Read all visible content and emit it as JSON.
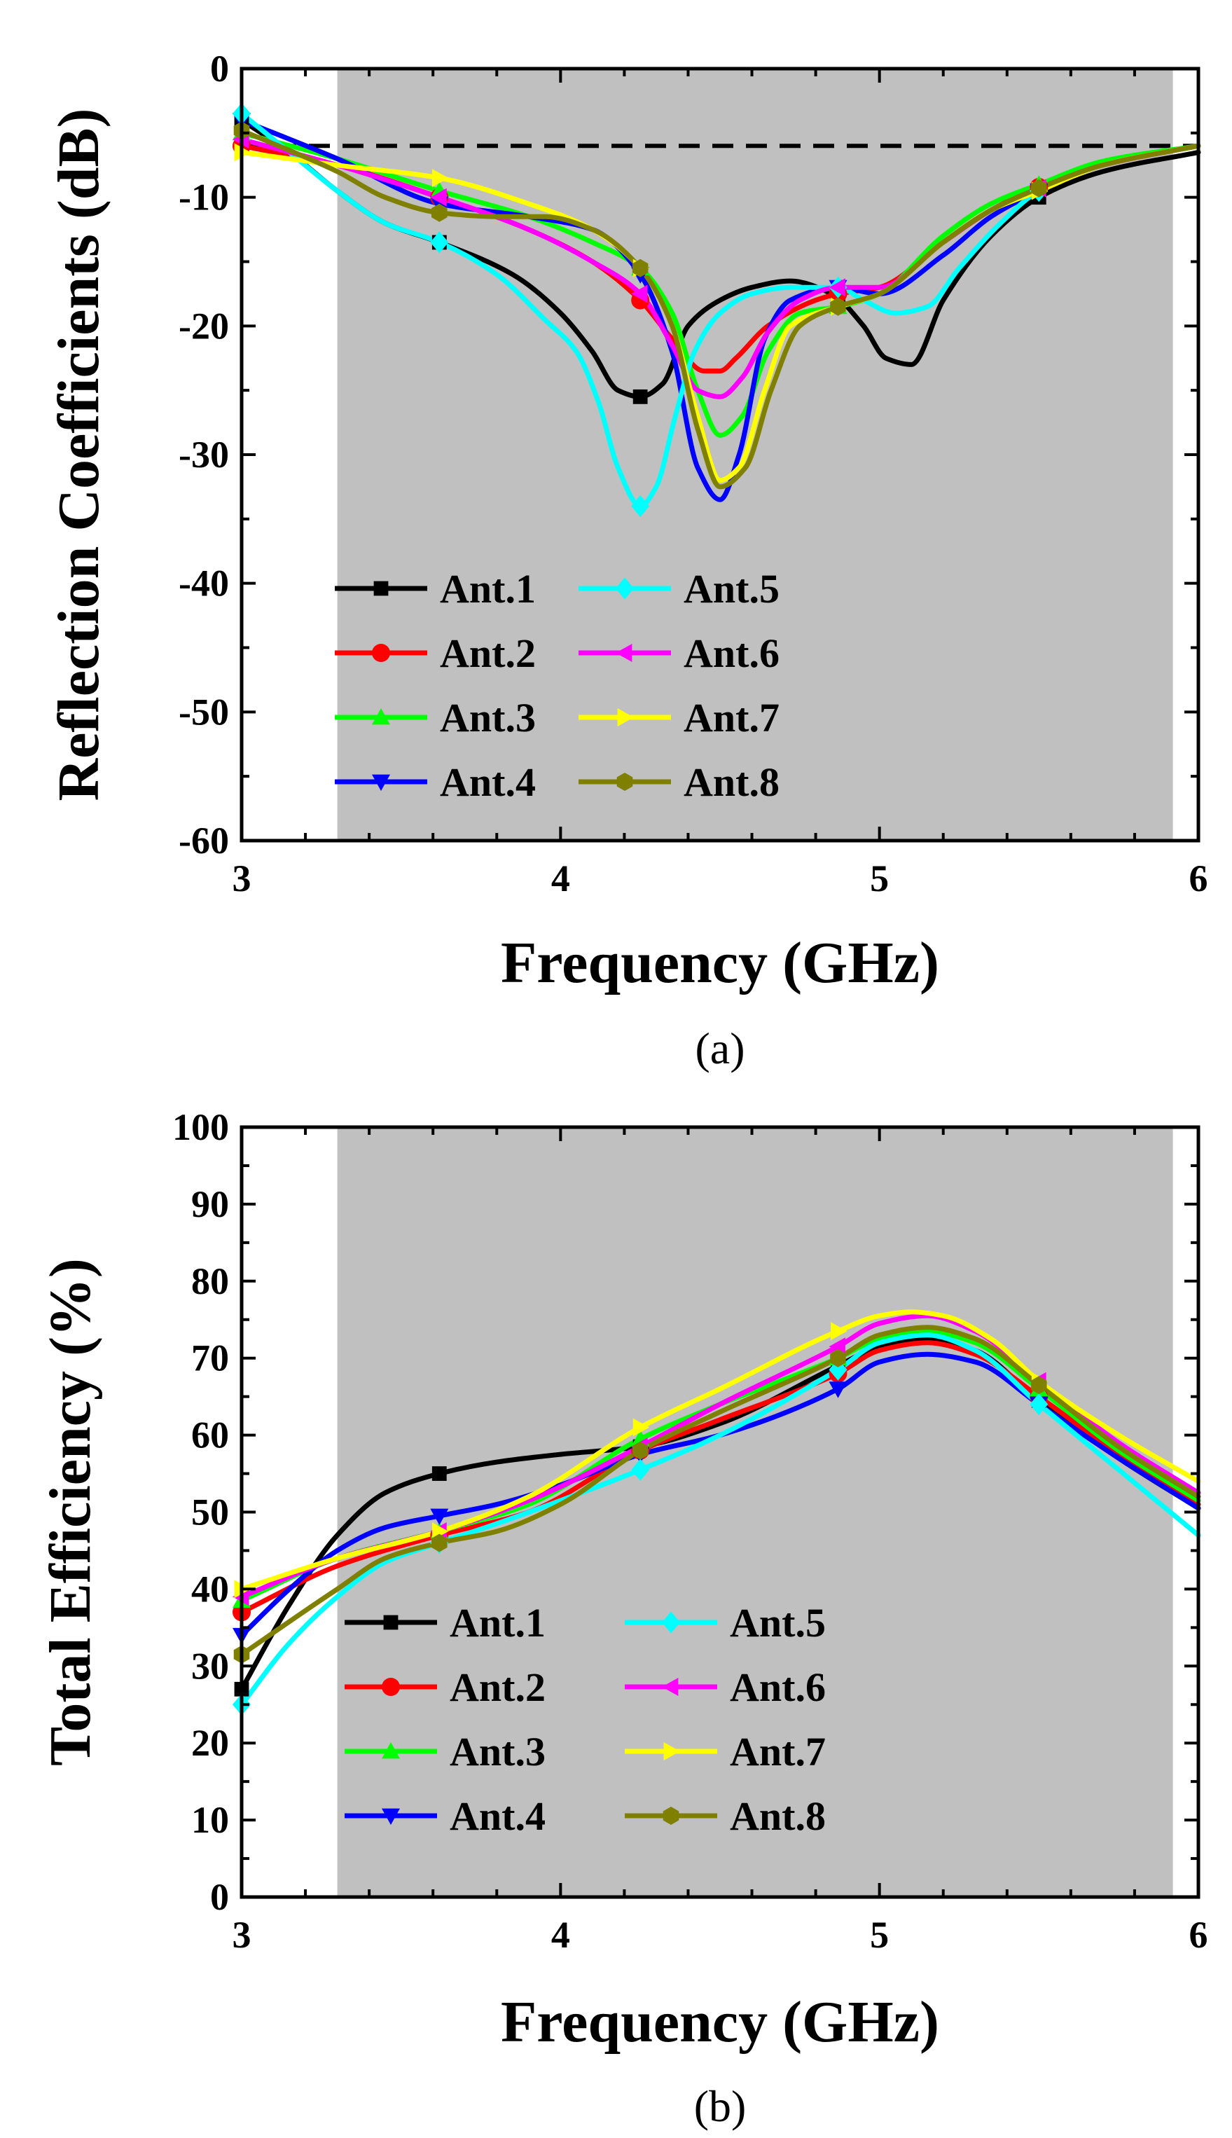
{
  "chart_data": [
    {
      "type": "line",
      "caption": "(a)",
      "xlabel": "Frequency (GHz)",
      "ylabel": "Reflection Coefficients (dB)",
      "xlim": [
        3,
        6
      ],
      "ylim": [
        -60,
        0
      ],
      "xticks": [
        "3",
        "4",
        "5",
        "6"
      ],
      "yticks": [
        "0",
        "-10",
        "-20",
        "-30",
        "-40",
        "-50",
        "-60"
      ],
      "shaded_band": [
        3.3,
        5.92
      ],
      "reference_line": -6,
      "series": [
        {
          "name": "Ant.1",
          "color": "#000000",
          "marker": "square",
          "x": [
            3.0,
            3.15,
            3.3,
            3.45,
            3.62,
            3.85,
            4.0,
            4.1,
            4.18,
            4.25,
            4.32,
            4.4,
            4.5,
            4.6,
            4.72,
            4.85,
            4.95,
            5.02,
            5.1,
            5.2,
            5.35,
            5.5,
            5.7,
            6.0
          ],
          "y": [
            -4.0,
            -6.5,
            -9.5,
            -12.0,
            -13.5,
            -16.0,
            -19.0,
            -22.0,
            -25.0,
            -25.5,
            -24.5,
            -20.0,
            -18.0,
            -17.0,
            -16.5,
            -17.5,
            -20.0,
            -22.5,
            -23.0,
            -18.0,
            -13.0,
            -10.0,
            -8.0,
            -6.5
          ]
        },
        {
          "name": "Ant.2",
          "color": "#ff0000",
          "marker": "circle",
          "x": [
            3.0,
            3.3,
            3.62,
            3.9,
            4.1,
            4.25,
            4.35,
            4.45,
            4.5,
            4.55,
            4.65,
            4.8,
            4.87,
            5.0,
            5.2,
            5.35,
            5.5,
            5.7,
            6.0
          ],
          "y": [
            -6.0,
            -7.5,
            -10.0,
            -12.5,
            -15.0,
            -18.0,
            -21.0,
            -23.5,
            -23.5,
            -22.5,
            -20.0,
            -18.0,
            -17.5,
            -17.0,
            -13.5,
            -11.0,
            -9.2,
            -7.5,
            -6.0
          ]
        },
        {
          "name": "Ant.3",
          "color": "#00ff00",
          "marker": "triangle-up",
          "x": [
            3.0,
            3.3,
            3.62,
            3.9,
            4.1,
            4.25,
            4.35,
            4.43,
            4.5,
            4.57,
            4.65,
            4.75,
            4.87,
            5.0,
            5.2,
            5.35,
            5.5,
            5.7,
            6.0
          ],
          "y": [
            -5.0,
            -7.0,
            -9.5,
            -11.5,
            -13.5,
            -15.5,
            -19.0,
            -25.0,
            -28.5,
            -27.0,
            -22.0,
            -19.0,
            -18.5,
            -17.5,
            -13.0,
            -10.5,
            -9.0,
            -7.2,
            -6.0
          ]
        },
        {
          "name": "Ant.4",
          "color": "#0000ff",
          "marker": "triangle-down",
          "x": [
            3.0,
            3.3,
            3.62,
            3.9,
            4.1,
            4.25,
            4.35,
            4.43,
            4.5,
            4.56,
            4.64,
            4.72,
            4.87,
            5.0,
            5.2,
            5.35,
            5.5,
            5.7,
            6.0
          ],
          "y": [
            -4.0,
            -7.0,
            -10.5,
            -11.5,
            -12.5,
            -16.0,
            -22.0,
            -31.0,
            -33.5,
            -30.0,
            -21.0,
            -18.0,
            -17.0,
            -17.5,
            -14.5,
            -11.5,
            -9.5,
            -7.5,
            -6.0
          ]
        },
        {
          "name": "Ant.5",
          "color": "#00ffff",
          "marker": "diamond",
          "x": [
            3.0,
            3.15,
            3.3,
            3.45,
            3.62,
            3.8,
            3.95,
            4.05,
            4.12,
            4.18,
            4.25,
            4.3,
            4.36,
            4.42,
            4.5,
            4.6,
            4.72,
            4.87,
            4.95,
            5.05,
            5.15,
            5.25,
            5.38,
            5.5,
            5.7,
            6.0
          ],
          "y": [
            -3.5,
            -6.5,
            -9.5,
            -12.0,
            -13.5,
            -16.0,
            -19.5,
            -22.0,
            -26.0,
            -31.0,
            -34.0,
            -32.5,
            -27.0,
            -22.0,
            -19.0,
            -17.5,
            -17.0,
            -17.0,
            -18.0,
            -19.0,
            -18.5,
            -15.5,
            -12.0,
            -9.5,
            -7.5,
            -6.0
          ]
        },
        {
          "name": "Ant.6",
          "color": "#ff00ff",
          "marker": "triangle-left",
          "x": [
            3.0,
            3.3,
            3.62,
            3.9,
            4.1,
            4.25,
            4.35,
            4.43,
            4.5,
            4.57,
            4.65,
            4.75,
            4.87,
            5.0,
            5.2,
            5.35,
            5.5,
            5.7,
            6.0
          ],
          "y": [
            -5.5,
            -7.5,
            -10.0,
            -12.5,
            -15.0,
            -17.5,
            -21.5,
            -25.0,
            -25.5,
            -24.0,
            -20.5,
            -18.0,
            -17.0,
            -17.0,
            -13.5,
            -11.0,
            -9.3,
            -7.5,
            -6.0
          ]
        },
        {
          "name": "Ant.7",
          "color": "#ffff00",
          "marker": "triangle-right",
          "x": [
            3.0,
            3.3,
            3.62,
            3.9,
            4.1,
            4.25,
            4.35,
            4.43,
            4.5,
            4.56,
            4.64,
            4.72,
            4.87,
            5.0,
            5.2,
            5.35,
            5.5,
            5.7,
            6.0
          ],
          "y": [
            -6.5,
            -7.5,
            -8.5,
            -10.5,
            -12.5,
            -15.5,
            -20.0,
            -27.0,
            -32.0,
            -31.0,
            -25.0,
            -20.0,
            -18.5,
            -17.5,
            -13.5,
            -11.0,
            -9.5,
            -7.5,
            -6.0
          ]
        },
        {
          "name": "Ant.8",
          "color": "#808000",
          "marker": "hexagon",
          "x": [
            3.0,
            3.3,
            3.45,
            3.62,
            3.8,
            3.95,
            4.1,
            4.25,
            4.35,
            4.43,
            4.5,
            4.58,
            4.66,
            4.75,
            4.87,
            5.0,
            5.2,
            5.35,
            5.5,
            5.7,
            6.0
          ],
          "y": [
            -4.8,
            -8.0,
            -10.0,
            -11.2,
            -11.5,
            -11.5,
            -12.5,
            -15.5,
            -20.0,
            -28.0,
            -32.5,
            -31.0,
            -25.0,
            -20.0,
            -18.5,
            -17.5,
            -13.5,
            -11.0,
            -9.3,
            -7.5,
            -6.0
          ]
        }
      ]
    },
    {
      "type": "line",
      "caption": "(b)",
      "xlabel": "Frequency (GHz)",
      "ylabel": "Total Efficiency (%)",
      "xlim": [
        3,
        6
      ],
      "ylim": [
        0,
        100
      ],
      "xticks": [
        "3",
        "4",
        "5",
        "6"
      ],
      "yticks": [
        "0",
        "10",
        "20",
        "30",
        "40",
        "50",
        "60",
        "70",
        "80",
        "90",
        "100"
      ],
      "shaded_band": [
        3.3,
        5.92
      ],
      "series": [
        {
          "name": "Ant.1",
          "color": "#000000",
          "marker": "square",
          "x": [
            3.0,
            3.15,
            3.3,
            3.45,
            3.62,
            3.8,
            4.0,
            4.25,
            4.5,
            4.87,
            5.0,
            5.15,
            5.3,
            5.5,
            5.75,
            6.0
          ],
          "y": [
            27.0,
            38.0,
            47.0,
            52.5,
            55.0,
            56.5,
            57.5,
            58.5,
            61.5,
            69.0,
            71.5,
            72.5,
            71.0,
            64.5,
            57.0,
            50.5
          ]
        },
        {
          "name": "Ant.2",
          "color": "#ff0000",
          "marker": "circle",
          "x": [
            3.0,
            3.3,
            3.62,
            3.9,
            4.25,
            4.5,
            4.87,
            5.0,
            5.15,
            5.3,
            5.5,
            5.75,
            6.0
          ],
          "y": [
            37.0,
            43.0,
            47.0,
            50.0,
            58.0,
            62.0,
            68.0,
            71.0,
            72.0,
            70.5,
            65.0,
            57.5,
            51.0
          ]
        },
        {
          "name": "Ant.3",
          "color": "#00ff00",
          "marker": "triangle-up",
          "x": [
            3.0,
            3.3,
            3.62,
            3.9,
            4.25,
            4.5,
            4.87,
            5.0,
            5.15,
            5.3,
            5.5,
            5.75,
            6.0
          ],
          "y": [
            38.5,
            44.0,
            47.5,
            51.0,
            59.5,
            64.0,
            70.0,
            72.5,
            73.5,
            72.0,
            66.0,
            58.0,
            51.5
          ]
        },
        {
          "name": "Ant.4",
          "color": "#0000ff",
          "marker": "triangle-down",
          "x": [
            3.0,
            3.15,
            3.3,
            3.45,
            3.62,
            3.8,
            4.0,
            4.25,
            4.5,
            4.87,
            5.0,
            5.15,
            5.3,
            5.5,
            5.75,
            6.0
          ],
          "y": [
            34.0,
            40.0,
            45.0,
            48.0,
            49.5,
            51.0,
            53.5,
            57.5,
            60.0,
            66.0,
            69.5,
            70.5,
            69.5,
            64.0,
            57.0,
            50.5
          ]
        },
        {
          "name": "Ant.5",
          "color": "#00ffff",
          "marker": "diamond",
          "x": [
            3.0,
            3.15,
            3.3,
            3.45,
            3.62,
            3.8,
            4.0,
            4.25,
            4.5,
            4.87,
            5.0,
            5.15,
            5.3,
            5.5,
            5.75,
            6.0
          ],
          "y": [
            25.0,
            33.0,
            39.0,
            43.5,
            46.0,
            48.5,
            51.5,
            55.5,
            60.0,
            68.5,
            72.0,
            73.0,
            71.0,
            64.0,
            55.5,
            47.0
          ]
        },
        {
          "name": "Ant.6",
          "color": "#ff00ff",
          "marker": "triangle-left",
          "x": [
            3.0,
            3.3,
            3.62,
            3.9,
            4.25,
            4.5,
            4.87,
            5.0,
            5.15,
            5.3,
            5.5,
            5.75,
            6.0
          ],
          "y": [
            39.0,
            44.0,
            47.5,
            51.5,
            58.5,
            64.0,
            71.5,
            74.5,
            75.5,
            73.5,
            67.0,
            59.0,
            52.5
          ]
        },
        {
          "name": "Ant.7",
          "color": "#ffff00",
          "marker": "triangle-right",
          "x": [
            3.0,
            3.3,
            3.62,
            3.9,
            4.25,
            4.5,
            4.87,
            5.0,
            5.1,
            5.2,
            5.35,
            5.5,
            5.75,
            6.0
          ],
          "y": [
            40.0,
            44.0,
            47.5,
            52.0,
            61.0,
            66.0,
            73.5,
            75.5,
            76.0,
            75.5,
            72.5,
            67.0,
            60.0,
            54.0
          ]
        },
        {
          "name": "Ant.8",
          "color": "#808000",
          "marker": "hexagon",
          "x": [
            3.0,
            3.3,
            3.45,
            3.62,
            3.8,
            4.0,
            4.25,
            4.5,
            4.87,
            5.0,
            5.15,
            5.3,
            5.5,
            5.75,
            6.0
          ],
          "y": [
            31.5,
            40.0,
            44.0,
            46.0,
            47.5,
            51.0,
            58.0,
            63.0,
            70.0,
            73.0,
            74.0,
            72.5,
            66.5,
            58.5,
            52.0
          ]
        }
      ]
    }
  ]
}
